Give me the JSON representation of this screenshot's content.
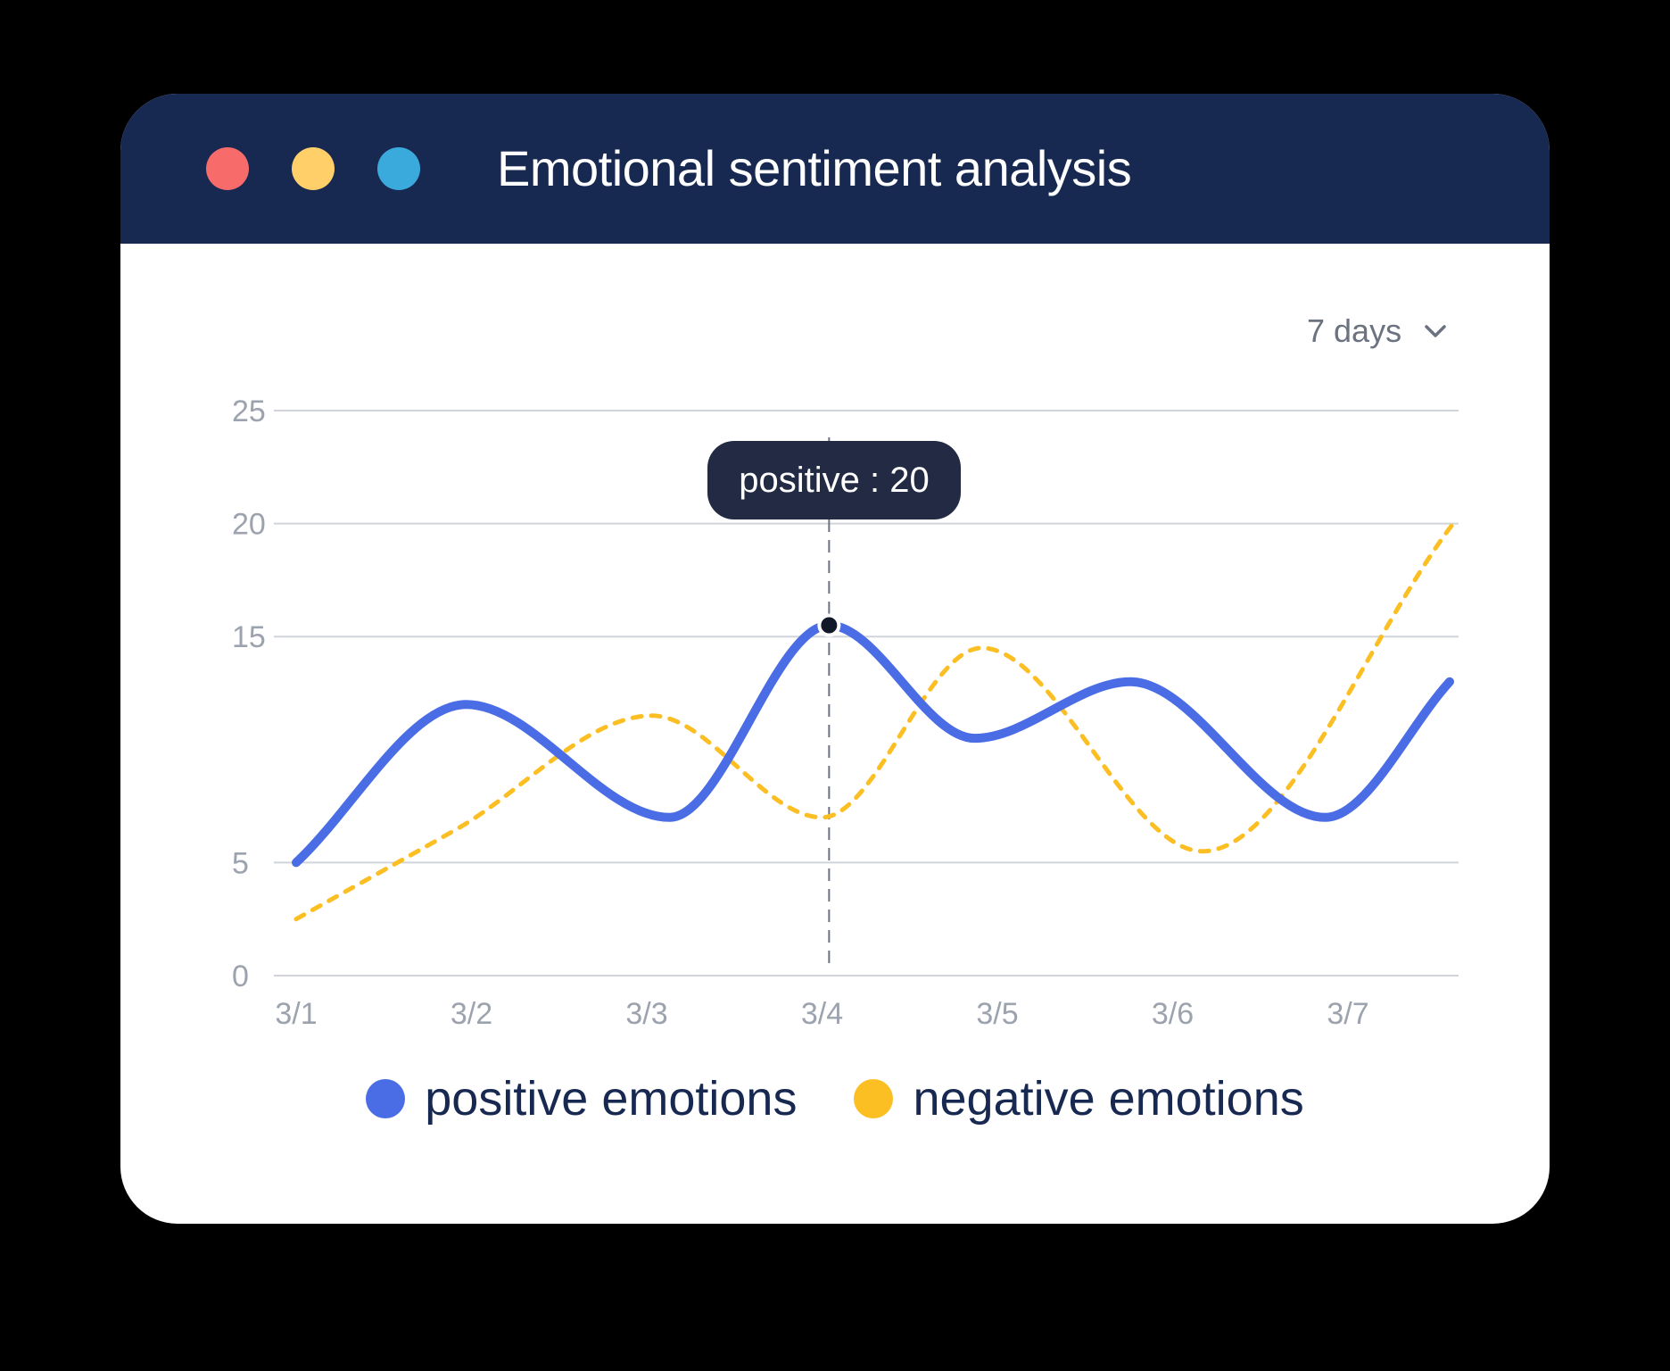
{
  "window": {
    "title": "Emotional sentiment analysis",
    "controls": [
      {
        "name": "close",
        "color": "#f76b6b"
      },
      {
        "name": "minimize",
        "color": "#ffd06a"
      },
      {
        "name": "maximize",
        "color": "#3aa9dc"
      }
    ]
  },
  "range_select": {
    "label": "7 days",
    "icon": "chevron-down-icon"
  },
  "tooltip": {
    "text": "positive : 20",
    "category": "3/4",
    "series": "positive emotions"
  },
  "colors": {
    "titlebar": "#182951",
    "positive": "#4a6de5",
    "negative": "#fbbf24",
    "grid": "#d1d5db",
    "tick": "#9ca3af",
    "tooltip_bg": "#222a44"
  },
  "chart_data": {
    "type": "line",
    "title": "",
    "xlabel": "",
    "ylabel": "",
    "categories": [
      "3/1",
      "3/2",
      "3/3",
      "3/4",
      "3/5",
      "3/6",
      "3/7"
    ],
    "y_ticks": [
      0,
      5,
      15,
      20,
      25
    ],
    "ylim": [
      0,
      25
    ],
    "grid": true,
    "legend_position": "bottom",
    "series": [
      {
        "name": "positive emotions",
        "style": "solid",
        "x": [
          3.0,
          3.97,
          5.13,
          6.04,
          6.87,
          7.76,
          8.87,
          9.58
        ],
        "values": [
          5,
          12,
          7,
          15.5,
          10.5,
          13,
          7,
          13
        ]
      },
      {
        "name": "negative emotions",
        "style": "dashed",
        "x": [
          3.0,
          3.92,
          5.03,
          6.0,
          6.91,
          8.17,
          9.6
        ],
        "values": [
          2.5,
          6.5,
          11.5,
          7,
          14.5,
          5.5,
          20
        ]
      }
    ]
  }
}
